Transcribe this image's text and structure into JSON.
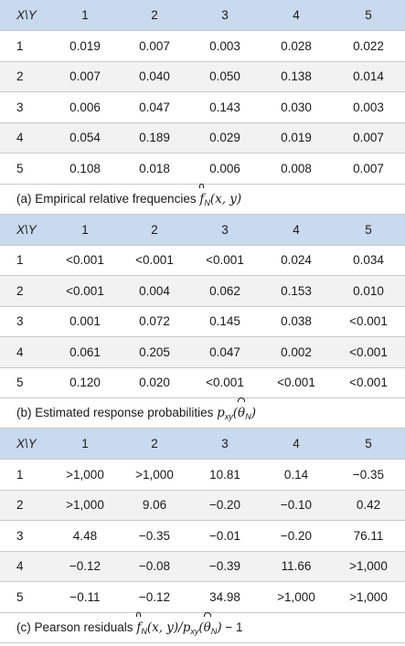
{
  "corner_label": "X\\Y",
  "column_headers": [
    "1",
    "2",
    "3",
    "4",
    "5"
  ],
  "tables": [
    {
      "rows": [
        {
          "label": "1",
          "values": [
            "0.019",
            "0.007",
            "0.003",
            "0.028",
            "0.022"
          ]
        },
        {
          "label": "2",
          "values": [
            "0.007",
            "0.040",
            "0.050",
            "0.138",
            "0.014"
          ]
        },
        {
          "label": "3",
          "values": [
            "0.006",
            "0.047",
            "0.143",
            "0.030",
            "0.003"
          ]
        },
        {
          "label": "4",
          "values": [
            "0.054",
            "0.189",
            "0.029",
            "0.019",
            "0.007"
          ]
        },
        {
          "label": "5",
          "values": [
            "0.108",
            "0.018",
            "0.006",
            "0.008",
            "0.007"
          ]
        }
      ],
      "caption": {
        "text": "(a) Empirical relative frequencies ",
        "f": "f",
        "sub": "N",
        "args": "(x, y)"
      }
    },
    {
      "rows": [
        {
          "label": "1",
          "values": [
            "<0.001",
            "<0.001",
            "<0.001",
            "0.024",
            "0.034"
          ]
        },
        {
          "label": "2",
          "values": [
            "<0.001",
            "0.004",
            "0.062",
            "0.153",
            "0.010"
          ]
        },
        {
          "label": "3",
          "values": [
            "0.001",
            "0.072",
            "0.145",
            "0.038",
            "<0.001"
          ]
        },
        {
          "label": "4",
          "values": [
            "0.061",
            "0.205",
            "0.047",
            "0.002",
            "<0.001"
          ]
        },
        {
          "label": "5",
          "values": [
            "0.120",
            "0.020",
            "<0.001",
            "<0.001",
            "<0.001"
          ]
        }
      ],
      "caption": {
        "text": "(b) Estimated response probabilities ",
        "p": "p",
        "p_sub": "xy",
        "open": "(",
        "theta": "θ",
        "theta_sub": "N",
        "close": ")"
      }
    },
    {
      "rows": [
        {
          "label": "1",
          "values": [
            ">1,000",
            ">1,000",
            "10.81",
            "0.14",
            "−0.35"
          ]
        },
        {
          "label": "2",
          "values": [
            ">1,000",
            "9.06",
            "−0.20",
            "−0.10",
            "0.42"
          ]
        },
        {
          "label": "3",
          "values": [
            "4.48",
            "−0.35",
            "−0.01",
            "−0.20",
            "76.11"
          ]
        },
        {
          "label": "4",
          "values": [
            "−0.12",
            "−0.08",
            "−0.39",
            "11.66",
            ">1,000"
          ]
        },
        {
          "label": "5",
          "values": [
            "−0.11",
            "−0.12",
            "34.98",
            ">1,000",
            ">1,000"
          ]
        }
      ],
      "caption": {
        "text": "(c) Pearson residuals ",
        "f": "f",
        "f_sub": "N",
        "f_args": "(x, y)",
        "slash": "/",
        "p": "p",
        "p_sub": "xy",
        "open": "(",
        "theta": "θ",
        "theta_sub": "N",
        "close": ")",
        "tail": " − 1"
      }
    }
  ]
}
